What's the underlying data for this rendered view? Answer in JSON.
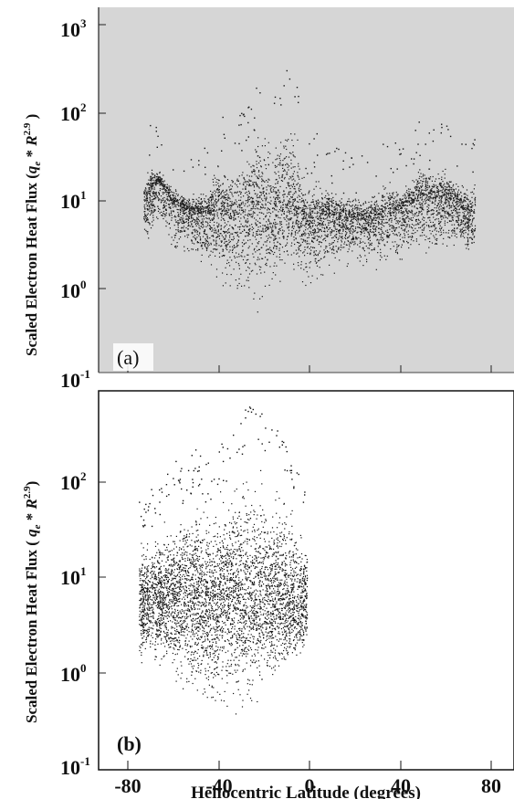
{
  "chart_data": [
    {
      "type": "scatter",
      "panel_label": "(a)",
      "ylabel": "Scaled Electron Heat Flux (q_e * R^2.9)",
      "ylabel_parts": {
        "prefix": "Scaled Electron Heat Flux (",
        "q": "q",
        "q_sub": "e",
        "mid": " * ",
        "r": "R",
        "r_sup": "2.9",
        "suffix": " )"
      },
      "yscale": "log",
      "ylim": [
        0.1,
        1000
      ],
      "y_tick_labels": [
        {
          "base": "10",
          "exp": "3"
        },
        {
          "base": "10",
          "exp": "2"
        },
        {
          "base": "10",
          "exp": "1"
        },
        {
          "base": "10",
          "exp": "0"
        },
        {
          "base": "10",
          "exp": "-1"
        }
      ],
      "xlim": [
        -90,
        90
      ],
      "x_ticks": [
        -80,
        -40,
        0,
        40,
        80
      ],
      "background": "#d6d6d6",
      "point_color": "#1a1a1a",
      "envelope": {
        "x": [
          -73,
          -70,
          -66,
          -60,
          -55,
          -50,
          -45,
          -40,
          -35,
          -30,
          -25,
          -20,
          -15,
          -10,
          -6,
          -3,
          0,
          3,
          8,
          15,
          20,
          30,
          35,
          40,
          45,
          50,
          55,
          60,
          66,
          70,
          73
        ],
        "ymed": [
          8,
          14,
          16,
          9,
          8,
          7,
          7,
          8,
          6,
          7,
          9,
          8,
          8,
          10,
          9,
          6,
          5,
          6,
          7,
          6,
          6,
          6,
          7,
          8,
          9,
          12,
          10,
          11,
          9,
          6,
          7
        ],
        "ymax": [
          20,
          25,
          22,
          15,
          12,
          12,
          14,
          40,
          20,
          35,
          60,
          80,
          70,
          120,
          90,
          20,
          15,
          20,
          15,
          12,
          12,
          15,
          18,
          15,
          20,
          30,
          25,
          25,
          18,
          15,
          25
        ],
        "ymin": [
          3,
          3,
          3,
          2,
          2,
          1.5,
          1,
          0.8,
          0.5,
          0.5,
          0.4,
          0.5,
          0.7,
          1.5,
          1,
          0.7,
          0.8,
          1,
          1.2,
          1.5,
          1.5,
          1.5,
          1.5,
          1.5,
          2,
          2,
          2,
          2,
          2,
          2,
          2
        ]
      }
    },
    {
      "type": "scatter",
      "panel_label": "(b)",
      "ylabel": "Scaled Electron Heat Flux (q_e * R^2.9)",
      "ylabel_parts": {
        "prefix": "Scaled Electron Heat Flux ( ",
        "q": "q",
        "q_sub": "e",
        "mid": " * ",
        "r": "R",
        "r_sup": "2.9",
        "suffix": ")"
      },
      "yscale": "log",
      "ylim": [
        0.1,
        1000
      ],
      "y_tick_labels": [
        {
          "base": "10",
          "exp": "2"
        },
        {
          "base": "10",
          "exp": "1"
        },
        {
          "base": "10",
          "exp": "0"
        },
        {
          "base": "10",
          "exp": "-1"
        }
      ],
      "xlim": [
        -90,
        90
      ],
      "x_ticks": [
        -80,
        -40,
        0,
        40,
        80
      ],
      "x_tick_labels": [
        "-80",
        "-40",
        "0",
        "40",
        "80"
      ],
      "xlabel": "Heliocentric Latitude (degrees)",
      "background": "#ffffff",
      "point_color": "#111111",
      "envelope": {
        "x": [
          -75,
          -70,
          -65,
          -60,
          -55,
          -50,
          -45,
          -40,
          -35,
          -30,
          -25,
          -20,
          -15,
          -10,
          -5,
          -1
        ],
        "ymed": [
          6,
          6,
          6,
          7,
          7,
          7,
          6,
          6,
          7,
          7,
          6,
          7,
          7,
          6,
          6,
          6
        ],
        "ymax": [
          30,
          30,
          40,
          60,
          60,
          80,
          60,
          90,
          120,
          200,
          300,
          200,
          150,
          100,
          50,
          30
        ],
        "ymin": [
          1,
          1,
          0.8,
          0.5,
          0.4,
          0.3,
          0.3,
          0.3,
          0.3,
          0.3,
          0.4,
          0.5,
          0.6,
          0.8,
          1,
          1.5
        ]
      }
    }
  ]
}
